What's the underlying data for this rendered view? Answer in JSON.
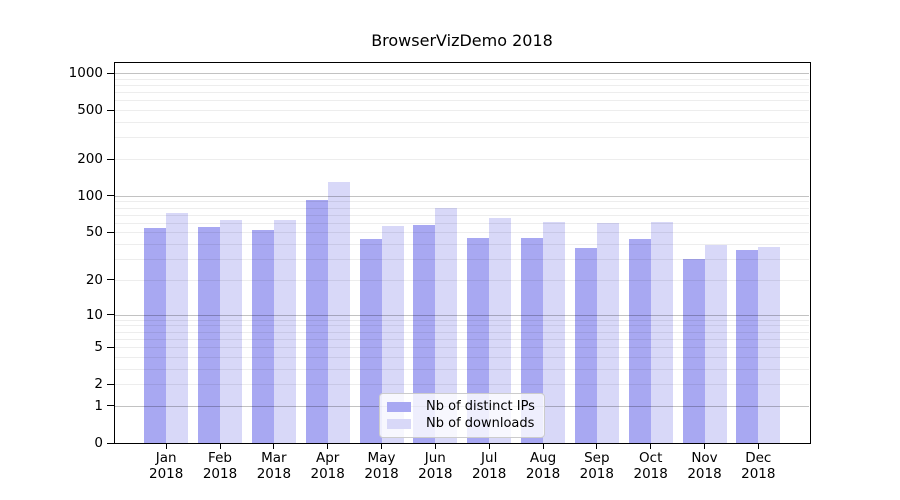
{
  "title": "BrowserVizDemo 2018",
  "chart_data": {
    "type": "bar",
    "title": "BrowserVizDemo 2018",
    "xlabel": "",
    "ylabel": "",
    "y_scale": "log1p",
    "ylim": [
      0,
      1000
    ],
    "grid": true,
    "legend_position": "inside-bottom-center",
    "categories": [
      "Jan",
      "Feb",
      "Mar",
      "Apr",
      "May",
      "Jun",
      "Jul",
      "Aug",
      "Sep",
      "Oct",
      "Nov",
      "Dec"
    ],
    "year": "2018",
    "series": [
      {
        "name": "Nb of distinct IPs",
        "color": "#a8a8f2",
        "values": [
          54,
          55,
          52,
          93,
          44,
          58,
          45,
          45,
          37,
          44,
          30,
          36
        ]
      },
      {
        "name": "Nb of downloads",
        "color": "#d8d8f8",
        "values": [
          72,
          63,
          63,
          130,
          57,
          79,
          66,
          61,
          60,
          61,
          39,
          38
        ]
      }
    ],
    "yticks": [
      0,
      1,
      2,
      5,
      10,
      20,
      50,
      100,
      200,
      500,
      1000
    ],
    "major_gridlines": [
      1,
      10,
      100,
      1000
    ],
    "minor_gridlines": [
      2,
      3,
      4,
      5,
      6,
      7,
      8,
      9,
      20,
      30,
      40,
      50,
      60,
      70,
      80,
      90,
      200,
      300,
      400,
      500,
      600,
      700,
      800,
      900
    ]
  }
}
